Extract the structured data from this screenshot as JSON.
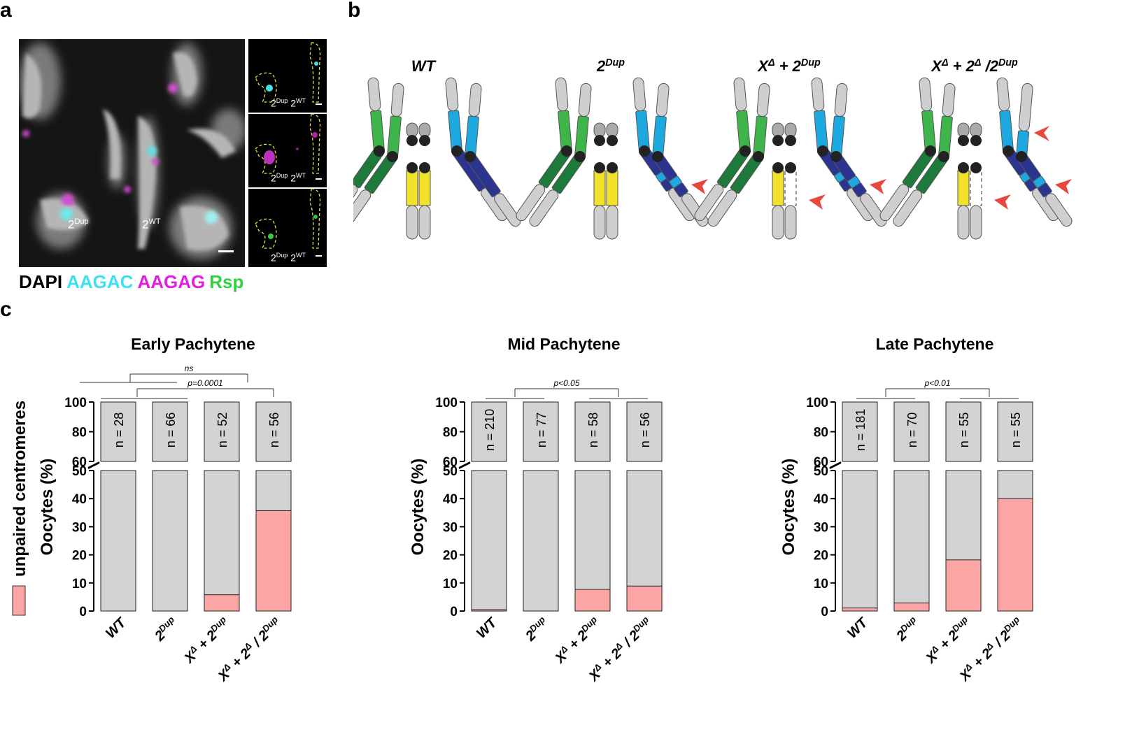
{
  "panels": {
    "a": "a",
    "b": "b",
    "c": "c"
  },
  "panel_a": {
    "main_labels": {
      "dup": "2",
      "dup_sup": "Dup",
      "wt": "2",
      "wt_sup": "WT"
    },
    "inset_labels": [
      {
        "dup": "2",
        "dup_sup": "Dup",
        "wt": "2",
        "wt_sup": "WT"
      },
      {
        "dup": "2",
        "dup_sup": "Dup",
        "wt": "2",
        "wt_sup": "WT"
      },
      {
        "dup": "2",
        "dup_sup": "Dup",
        "wt": "2",
        "wt_sup": "WT"
      }
    ],
    "legend": [
      {
        "text": "DAPI",
        "color": "#000000"
      },
      {
        "text": "AAGAC",
        "color": "#3fe0f0"
      },
      {
        "text": "AAGAG",
        "color": "#e020e0"
      },
      {
        "text": "Rsp",
        "color": "#30d040"
      }
    ]
  },
  "panel_b": {
    "genotypes": [
      {
        "base": "WT",
        "sup": "",
        "tail": ""
      },
      {
        "base": "2",
        "sup": "Dup",
        "tail": ""
      },
      {
        "base": "X",
        "sup": "Δ",
        "tail": " + 2",
        "tail_sup": "Dup"
      },
      {
        "base": "X",
        "sup": "Δ",
        "tail": " + 2",
        "tail_sup": "Δ",
        "tail2": " /2",
        "tail2_sup": "Dup"
      }
    ],
    "colors": {
      "green_light": "#3db54a",
      "green_dark": "#1e7a3a",
      "blue_light": "#1ea8e0",
      "blue_dark": "#2b3590",
      "yellow": "#f2e12a",
      "grey": "#cfcfcf",
      "arrow": "#e8473d"
    }
  },
  "panel_c": {
    "legend_label": "unpaired centromeres",
    "legend_color": "#fca5a5",
    "ylabel": "Oocytes (%)",
    "y_ticks_lower": [
      0,
      10,
      20,
      30,
      40,
      50
    ],
    "y_ticks_upper": [
      60,
      80,
      100
    ],
    "x_categories": [
      "WT",
      "2^Dup",
      "X^Δ + 2^Dup",
      "X^Δ + 2^Δ / 2^Dup"
    ],
    "x_labels": [
      {
        "base": "WT"
      },
      {
        "base": "2",
        "sup": "Dup"
      },
      {
        "base": "X",
        "sup": "Δ",
        "mid": " + 2",
        "sup2": "Dup"
      },
      {
        "base": "X",
        "sup": "Δ",
        "mid": " + 2",
        "sup2": "Δ",
        "mid2": " / 2",
        "sup3": "Dup"
      }
    ]
  },
  "chart_data": [
    {
      "type": "bar",
      "title": "Early Pachytene",
      "categories": [
        "WT",
        "2^Dup",
        "X^Δ + 2^Dup",
        "X^Δ + 2^Δ / 2^Dup"
      ],
      "n_labels": [
        "n = 28",
        "n = 66",
        "n = 52",
        "n = 56"
      ],
      "values": [
        0,
        0,
        5.8,
        35.7
      ],
      "ylabel": "Oocytes (%)",
      "ylim": [
        0,
        100
      ],
      "axis_break": [
        50,
        60
      ],
      "stats": [
        {
          "text": "ns",
          "from": [
            0,
            1
          ],
          "to": [
            2,
            3
          ]
        },
        {
          "text": "p=0.0001",
          "from": [
            0,
            1
          ],
          "to": [
            3,
            3
          ]
        }
      ]
    },
    {
      "type": "bar",
      "title": "Mid Pachytene",
      "categories": [
        "WT",
        "2^Dup",
        "X^Δ + 2^Dup",
        "X^Δ + 2^Δ / 2^Dup"
      ],
      "n_labels": [
        "n = 210",
        "n = 77",
        "n = 58",
        "n = 56"
      ],
      "values": [
        0.5,
        0,
        7.7,
        8.9
      ],
      "ylabel": "Oocytes (%)",
      "ylim": [
        0,
        100
      ],
      "axis_break": [
        50,
        60
      ],
      "stats": [
        {
          "text": "p<0.05",
          "from": [
            0,
            1
          ],
          "to": [
            2,
            3
          ]
        }
      ]
    },
    {
      "type": "bar",
      "title": "Late Pachytene",
      "categories": [
        "WT",
        "2^Dup",
        "X^Δ + 2^Dup",
        "X^Δ + 2^Δ / 2^Dup"
      ],
      "n_labels": [
        "n = 181",
        "n = 70",
        "n = 55",
        "n = 55"
      ],
      "values": [
        1.1,
        2.9,
        18.2,
        40.0
      ],
      "ylabel": "Oocytes (%)",
      "ylim": [
        0,
        100
      ],
      "axis_break": [
        50,
        60
      ],
      "stats": [
        {
          "text": "p<0.01",
          "from": [
            0,
            1
          ],
          "to": [
            2,
            3
          ]
        }
      ]
    }
  ]
}
